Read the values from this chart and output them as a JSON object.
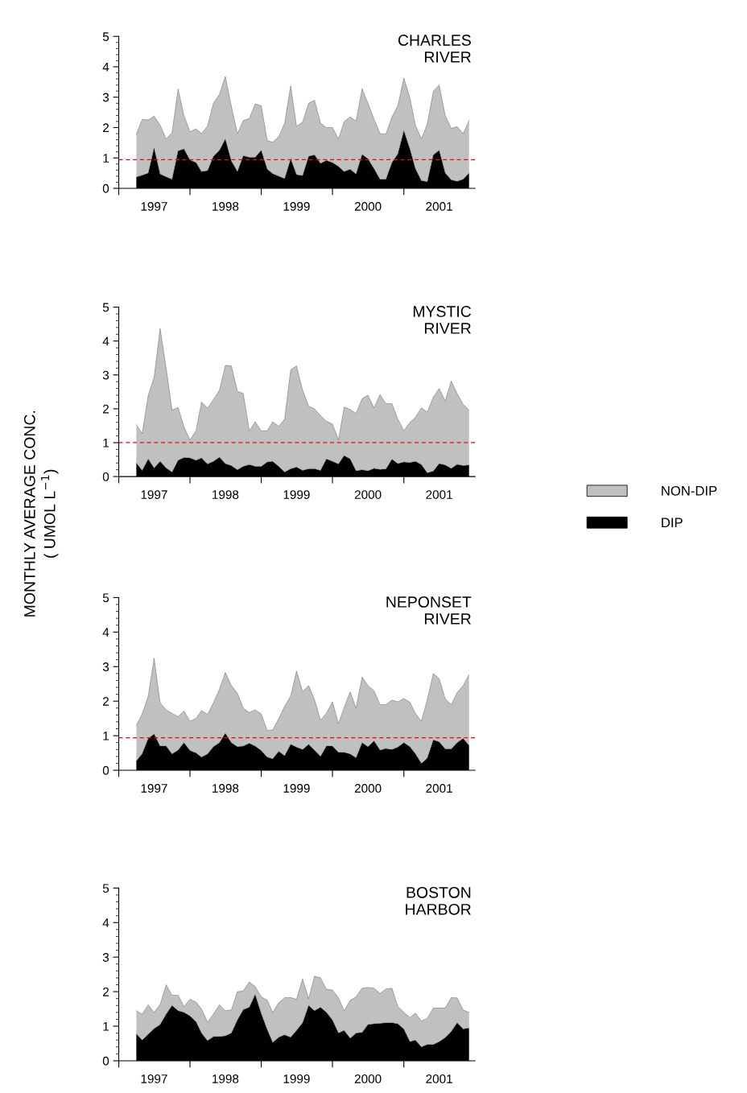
{
  "chart_data": [
    {
      "type": "area",
      "title": "CHARLES\nRIVER",
      "stacked": true,
      "xlim": [
        "1997-01",
        "2002-01"
      ],
      "ylim": [
        0,
        5
      ],
      "xticks": [
        {
          "value": "1997-01",
          "label": null
        },
        {
          "value": "1998-01",
          "label": null
        },
        {
          "value": "1999-01",
          "label": null
        },
        {
          "value": "2000-01",
          "label": null
        },
        {
          "value": "2001-01",
          "label": null
        },
        {
          "value": "1997-07",
          "label": "1997"
        },
        {
          "value": "1998-07",
          "label": "1998"
        },
        {
          "value": "1999-07",
          "label": "1999"
        },
        {
          "value": "2000-07",
          "label": "2000"
        },
        {
          "value": "2001-07",
          "label": "2001"
        }
      ],
      "yticks": [
        0,
        1,
        2,
        3,
        4,
        5,
        {
          "value": 0.2,
          "label": null
        },
        {
          "value": 0.4,
          "label": null
        },
        {
          "value": 0.6,
          "label": null
        },
        {
          "value": 0.8,
          "label": null
        },
        {
          "value": 1.2,
          "label": null
        },
        {
          "value": 1.4,
          "label": null
        },
        {
          "value": 1.6,
          "label": null
        },
        {
          "value": 1.8,
          "label": null
        },
        {
          "value": 2.2,
          "label": null
        },
        {
          "value": 2.4,
          "label": null
        },
        {
          "value": 2.6,
          "label": null
        },
        {
          "value": 2.8,
          "label": null
        },
        {
          "value": 3.2,
          "label": null
        },
        {
          "value": 3.4,
          "label": null
        },
        {
          "value": 3.6,
          "label": null
        },
        {
          "value": 3.8,
          "label": null
        },
        {
          "value": 4.2,
          "label": null
        },
        {
          "value": 4.4,
          "label": null
        },
        {
          "value": 4.6,
          "label": null
        },
        {
          "value": 4.8,
          "label": null
        }
      ],
      "ref_lines": [
        {
          "axis": "y",
          "value": 0.94,
          "color": "#ff0000",
          "line_style": "dashed"
        }
      ],
      "series": [
        {
          "color": "#000000",
          "values": [
            0.37,
            0.43,
            0.5,
            1.33,
            0.47,
            0.38,
            0.3,
            1.23,
            1.3,
            0.93,
            0.85,
            0.55,
            0.58,
            1.05,
            1.25,
            1.62,
            0.9,
            0.55,
            1.07,
            1.02,
            1.02,
            1.25,
            0.63,
            0.48,
            0.4,
            0.32,
            0.97,
            0.45,
            0.42,
            1.05,
            1.1,
            0.82,
            0.92,
            0.85,
            0.72,
            0.55,
            0.63,
            0.47,
            1.12,
            0.97,
            0.65,
            0.3,
            0.3,
            0.85,
            1.13,
            1.9,
            1.3,
            0.65,
            0.25,
            0.22,
            1.1,
            1.25,
            0.5,
            0.28,
            0.23,
            0.3,
            0.5
          ]
        },
        {
          "color": "#c0c0c0",
          "values": [
            1.41,
            1.84,
            1.75,
            1.05,
            1.61,
            1.25,
            1.53,
            2.04,
            1.1,
            0.93,
            1.11,
            1.25,
            1.47,
            1.75,
            1.85,
            2.06,
            1.8,
            1.25,
            1.16,
            1.28,
            1.76,
            1.47,
            0.94,
            1.04,
            1.3,
            1.83,
            2.4,
            1.59,
            1.76,
            1.75,
            1.8,
            1.33,
            1.08,
            1.15,
            0.9,
            1.65,
            1.72,
            1.75,
            2.16,
            1.83,
            1.63,
            1.5,
            1.49,
            1.5,
            1.59,
            1.73,
            1.68,
            1.43,
            1.38,
            1.9,
            2.1,
            2.15,
            1.9,
            1.69,
            1.8,
            1.5,
            1.73
          ]
        }
      ],
      "x": [
        "1997-04",
        "1997-05",
        "1997-06",
        "1997-07",
        "1997-08",
        "1997-09",
        "1997-10",
        "1997-11",
        "1997-12",
        "1998-01",
        "1998-02",
        "1998-03",
        "1998-04",
        "1998-05",
        "1998-06",
        "1998-07",
        "1998-08",
        "1998-09",
        "1998-10",
        "1998-11",
        "1998-12",
        "1999-01",
        "1999-02",
        "1999-03",
        "1999-04",
        "1999-05",
        "1999-06",
        "1999-07",
        "1999-08",
        "1999-09",
        "1999-10",
        "1999-11",
        "1999-12",
        "2000-01",
        "2000-02",
        "2000-03",
        "2000-04",
        "2000-05",
        "2000-06",
        "2000-07",
        "2000-08",
        "2000-09",
        "2000-10",
        "2000-11",
        "2000-12",
        "2001-01",
        "2001-02",
        "2001-03",
        "2001-04",
        "2001-05",
        "2001-06",
        "2001-07",
        "2001-08",
        "2001-09",
        "2001-10",
        "2001-11",
        "2001-12"
      ]
    },
    {
      "type": "area",
      "title": "MYSTIC\nRIVER",
      "ylabel": "MONTHLY AVERAGE CONC.\n( UMOL L$^{−1}$)",
      "stacked": true,
      "legend": "right",
      "xlim": [
        "1997-01",
        "2002-01"
      ],
      "ylim": [
        0,
        5
      ],
      "xticks": [
        {
          "value": "1997-01",
          "label": null
        },
        {
          "value": "1998-01",
          "label": null
        },
        {
          "value": "1999-01",
          "label": null
        },
        {
          "value": "2000-01",
          "label": null
        },
        {
          "value": "2001-01",
          "label": null
        },
        {
          "value": "1997-07",
          "label": "1997"
        },
        {
          "value": "1998-07",
          "label": "1998"
        },
        {
          "value": "1999-07",
          "label": "1999"
        },
        {
          "value": "2000-07",
          "label": "2000"
        },
        {
          "value": "2001-07",
          "label": "2001"
        }
      ],
      "yticks": [
        0,
        1,
        2,
        3,
        4,
        5,
        {
          "value": 0.2,
          "label": null
        },
        {
          "value": 0.4,
          "label": null
        },
        {
          "value": 0.6,
          "label": null
        },
        {
          "value": 0.8,
          "label": null
        },
        {
          "value": 1.2,
          "label": null
        },
        {
          "value": 1.4,
          "label": null
        },
        {
          "value": 1.6,
          "label": null
        },
        {
          "value": 1.8,
          "label": null
        },
        {
          "value": 2.2,
          "label": null
        },
        {
          "value": 2.4,
          "label": null
        },
        {
          "value": 2.6,
          "label": null
        },
        {
          "value": 2.8,
          "label": null
        },
        {
          "value": 3.2,
          "label": null
        },
        {
          "value": 3.4,
          "label": null
        },
        {
          "value": 3.6,
          "label": null
        },
        {
          "value": 3.8,
          "label": null
        },
        {
          "value": 4.2,
          "label": null
        },
        {
          "value": 4.4,
          "label": null
        },
        {
          "value": 4.6,
          "label": null
        },
        {
          "value": 4.8,
          "label": null
        }
      ],
      "ref_lines": [
        {
          "axis": "y",
          "value": 1.0,
          "color": "#ff0000",
          "line_style": "dashed"
        }
      ],
      "series": [
        {
          "name": "DIP",
          "color": "#000000",
          "values": [
            0.4,
            0.18,
            0.52,
            0.25,
            0.45,
            0.25,
            0.13,
            0.48,
            0.56,
            0.55,
            0.48,
            0.55,
            0.37,
            0.45,
            0.57,
            0.38,
            0.32,
            0.2,
            0.3,
            0.35,
            0.3,
            0.3,
            0.43,
            0.45,
            0.3,
            0.13,
            0.23,
            0.28,
            0.18,
            0.23,
            0.23,
            0.18,
            0.52,
            0.45,
            0.37,
            0.62,
            0.52,
            0.17,
            0.2,
            0.17,
            0.24,
            0.21,
            0.22,
            0.51,
            0.38,
            0.43,
            0.41,
            0.45,
            0.35,
            0.11,
            0.16,
            0.38,
            0.34,
            0.24,
            0.36,
            0.32,
            0.34
          ]
        },
        {
          "name": "NON-DIP",
          "color": "#c0c0c0",
          "values": [
            1.13,
            1.09,
            1.88,
            2.68,
            3.92,
            2.95,
            1.83,
            1.56,
            0.91,
            0.53,
            0.87,
            1.65,
            1.65,
            1.82,
            1.98,
            2.9,
            2.95,
            2.32,
            2.15,
            1.0,
            1.32,
            1.05,
            0.92,
            1.17,
            1.18,
            1.57,
            2.92,
            2.99,
            2.37,
            1.85,
            1.77,
            1.62,
            1.11,
            1.1,
            0.71,
            1.43,
            1.46,
            1.69,
            2.1,
            2.23,
            1.79,
            2.21,
            1.93,
            1.64,
            1.32,
            0.92,
            1.19,
            1.3,
            1.68,
            1.79,
            2.19,
            2.22,
            1.89,
            2.58,
            2.09,
            1.81,
            1.62
          ]
        }
      ],
      "x": [
        "1997-04",
        "1997-05",
        "1997-06",
        "1997-07",
        "1997-08",
        "1997-09",
        "1997-10",
        "1997-11",
        "1997-12",
        "1998-01",
        "1998-02",
        "1998-03",
        "1998-04",
        "1998-05",
        "1998-06",
        "1998-07",
        "1998-08",
        "1998-09",
        "1998-10",
        "1998-11",
        "1998-12",
        "1999-01",
        "1999-02",
        "1999-03",
        "1999-04",
        "1999-05",
        "1999-06",
        "1999-07",
        "1999-08",
        "1999-09",
        "1999-10",
        "1999-11",
        "1999-12",
        "2000-01",
        "2000-02",
        "2000-03",
        "2000-04",
        "2000-05",
        "2000-06",
        "2000-07",
        "2000-08",
        "2000-09",
        "2000-10",
        "2000-11",
        "2000-12",
        "2001-01",
        "2001-02",
        "2001-03",
        "2001-04",
        "2001-05",
        "2001-06",
        "2001-07",
        "2001-08",
        "2001-09",
        "2001-10",
        "2001-11",
        "2001-12"
      ]
    },
    {
      "type": "area",
      "title": "NEPONSET\nRIVER",
      "stacked": true,
      "xlim": [
        "1997-01",
        "2002-01"
      ],
      "ylim": [
        0,
        5
      ],
      "xticks": [
        {
          "value": "1997-01",
          "label": null
        },
        {
          "value": "1998-01",
          "label": null
        },
        {
          "value": "1999-01",
          "label": null
        },
        {
          "value": "2000-01",
          "label": null
        },
        {
          "value": "2001-01",
          "label": null
        },
        {
          "value": "1997-07",
          "label": "1997"
        },
        {
          "value": "1998-07",
          "label": "1998"
        },
        {
          "value": "1999-07",
          "label": "1999"
        },
        {
          "value": "2000-07",
          "label": "2000"
        },
        {
          "value": "2001-07",
          "label": "2001"
        }
      ],
      "yticks": [
        0,
        1,
        2,
        3,
        4,
        5,
        {
          "value": 0.2,
          "label": null
        },
        {
          "value": 0.4,
          "label": null
        },
        {
          "value": 0.6,
          "label": null
        },
        {
          "value": 0.8,
          "label": null
        },
        {
          "value": 1.2,
          "label": null
        },
        {
          "value": 1.4,
          "label": null
        },
        {
          "value": 1.6,
          "label": null
        },
        {
          "value": 1.8,
          "label": null
        },
        {
          "value": 2.2,
          "label": null
        },
        {
          "value": 2.4,
          "label": null
        },
        {
          "value": 2.6,
          "label": null
        },
        {
          "value": 2.8,
          "label": null
        },
        {
          "value": 3.2,
          "label": null
        },
        {
          "value": 3.4,
          "label": null
        },
        {
          "value": 3.6,
          "label": null
        },
        {
          "value": 3.8,
          "label": null
        },
        {
          "value": 4.2,
          "label": null
        },
        {
          "value": 4.4,
          "label": null
        },
        {
          "value": 4.6,
          "label": null
        },
        {
          "value": 4.8,
          "label": null
        }
      ],
      "ref_lines": [
        {
          "axis": "y",
          "value": 0.94,
          "color": "#ff0000",
          "line_style": "dashed"
        }
      ],
      "series": [
        {
          "color": "#000000",
          "values": [
            0.27,
            0.48,
            0.92,
            1.05,
            0.7,
            0.7,
            0.47,
            0.58,
            0.8,
            0.57,
            0.5,
            0.38,
            0.47,
            0.68,
            0.8,
            1.07,
            0.8,
            0.68,
            0.7,
            0.78,
            0.7,
            0.57,
            0.38,
            0.33,
            0.55,
            0.42,
            0.75,
            0.67,
            0.6,
            0.75,
            0.58,
            0.4,
            0.7,
            0.7,
            0.52,
            0.52,
            0.47,
            0.36,
            0.8,
            0.68,
            0.85,
            0.58,
            0.63,
            0.6,
            0.67,
            0.8,
            0.68,
            0.48,
            0.2,
            0.35,
            0.88,
            0.82,
            0.62,
            0.62,
            0.8,
            0.92,
            0.72
          ]
        },
        {
          "color": "#c0c0c0",
          "values": [
            1.03,
            1.15,
            1.23,
            2.2,
            1.25,
            1.05,
            1.18,
            0.97,
            0.92,
            0.85,
            1.0,
            1.35,
            1.15,
            1.27,
            1.55,
            1.76,
            1.65,
            1.55,
            1.1,
            0.89,
            1.05,
            1.06,
            0.77,
            0.84,
            0.95,
            1.43,
            1.4,
            2.2,
            1.68,
            1.7,
            1.47,
            1.05,
            0.95,
            1.28,
            0.83,
            1.3,
            1.8,
            1.44,
            1.9,
            1.77,
            1.45,
            1.32,
            1.27,
            1.43,
            1.31,
            1.28,
            1.29,
            1.17,
            1.22,
            1.7,
            1.92,
            1.83,
            1.45,
            1.28,
            1.45,
            1.53,
            2.05
          ]
        }
      ],
      "x": [
        "1997-04",
        "1997-05",
        "1997-06",
        "1997-07",
        "1997-08",
        "1997-09",
        "1997-10",
        "1997-11",
        "1997-12",
        "1998-01",
        "1998-02",
        "1998-03",
        "1998-04",
        "1998-05",
        "1998-06",
        "1998-07",
        "1998-08",
        "1998-09",
        "1998-10",
        "1998-11",
        "1998-12",
        "1999-01",
        "1999-02",
        "1999-03",
        "1999-04",
        "1999-05",
        "1999-06",
        "1999-07",
        "1999-08",
        "1999-09",
        "1999-10",
        "1999-11",
        "1999-12",
        "2000-01",
        "2000-02",
        "2000-03",
        "2000-04",
        "2000-05",
        "2000-06",
        "2000-07",
        "2000-08",
        "2000-09",
        "2000-10",
        "2000-11",
        "2000-12",
        "2001-01",
        "2001-02",
        "2001-03",
        "2001-04",
        "2001-05",
        "2001-06",
        "2001-07",
        "2001-08",
        "2001-09",
        "2001-10",
        "2001-11",
        "2001-12"
      ]
    },
    {
      "type": "area",
      "title": "BOSTON\nHARBOR",
      "stacked": true,
      "xlim": [
        "1997-01",
        "2002-01"
      ],
      "ylim": [
        0,
        5
      ],
      "xticks": [
        {
          "value": "1997-01",
          "label": null
        },
        {
          "value": "1998-01",
          "label": null
        },
        {
          "value": "1999-01",
          "label": null
        },
        {
          "value": "2000-01",
          "label": null
        },
        {
          "value": "2001-01",
          "label": null
        },
        {
          "value": "1997-07",
          "label": "1997"
        },
        {
          "value": "1998-07",
          "label": "1998"
        },
        {
          "value": "1999-07",
          "label": "1999"
        },
        {
          "value": "2000-07",
          "label": "2000"
        },
        {
          "value": "2001-07",
          "label": "2001"
        }
      ],
      "yticks": [
        0,
        1,
        2,
        3,
        4,
        5,
        {
          "value": 0.2,
          "label": null
        },
        {
          "value": 0.4,
          "label": null
        },
        {
          "value": 0.6,
          "label": null
        },
        {
          "value": 0.8,
          "label": null
        },
        {
          "value": 1.2,
          "label": null
        },
        {
          "value": 1.4,
          "label": null
        },
        {
          "value": 1.6,
          "label": null
        },
        {
          "value": 1.8,
          "label": null
        },
        {
          "value": 2.2,
          "label": null
        },
        {
          "value": 2.4,
          "label": null
        },
        {
          "value": 2.6,
          "label": null
        },
        {
          "value": 2.8,
          "label": null
        },
        {
          "value": 3.2,
          "label": null
        },
        {
          "value": 3.4,
          "label": null
        },
        {
          "value": 3.6,
          "label": null
        },
        {
          "value": 3.8,
          "label": null
        },
        {
          "value": 4.2,
          "label": null
        },
        {
          "value": 4.4,
          "label": null
        },
        {
          "value": 4.6,
          "label": null
        },
        {
          "value": 4.8,
          "label": null
        }
      ],
      "series": [
        {
          "color": "#000000",
          "values": [
            0.78,
            0.6,
            0.77,
            0.93,
            1.05,
            1.35,
            1.6,
            1.45,
            1.4,
            1.3,
            1.13,
            0.8,
            0.58,
            0.7,
            0.7,
            0.72,
            0.8,
            1.18,
            1.48,
            1.55,
            1.92,
            1.37,
            0.9,
            0.53,
            0.68,
            0.75,
            0.68,
            0.88,
            1.1,
            1.6,
            1.45,
            1.55,
            1.4,
            1.18,
            0.8,
            0.88,
            0.65,
            0.8,
            0.82,
            1.05,
            1.07,
            1.08,
            1.1,
            1.1,
            1.07,
            0.92,
            0.55,
            0.6,
            0.4,
            0.47,
            0.47,
            0.55,
            0.67,
            0.85,
            1.1,
            0.92,
            0.95
          ]
        },
        {
          "color": "#c0c0c0",
          "values": [
            0.67,
            0.75,
            0.85,
            0.47,
            0.58,
            0.85,
            0.3,
            0.45,
            0.17,
            0.48,
            0.57,
            0.7,
            0.54,
            0.65,
            0.92,
            0.73,
            0.67,
            0.82,
            0.54,
            0.73,
            0.23,
            0.48,
            0.85,
            0.87,
            1.0,
            1.08,
            1.15,
            0.9,
            1.27,
            0.2,
            1.0,
            0.85,
            0.67,
            0.87,
            1.02,
            0.57,
            1.1,
            1.05,
            1.28,
            1.07,
            1.03,
            0.87,
            0.98,
            1.0,
            0.5,
            0.48,
            0.7,
            0.78,
            0.75,
            0.76,
            1.06,
            0.98,
            0.86,
            0.98,
            0.72,
            0.55,
            0.45
          ]
        }
      ],
      "x": [
        "1997-04",
        "1997-05",
        "1997-06",
        "1997-07",
        "1997-08",
        "1997-09",
        "1997-10",
        "1997-11",
        "1997-12",
        "1998-01",
        "1998-02",
        "1998-03",
        "1998-04",
        "1998-05",
        "1998-06",
        "1998-07",
        "1998-08",
        "1998-09",
        "1998-10",
        "1998-11",
        "1998-12",
        "1999-01",
        "1999-02",
        "1999-03",
        "1999-04",
        "1999-05",
        "1999-06",
        "1999-07",
        "1999-08",
        "1999-09",
        "1999-10",
        "1999-11",
        "1999-12",
        "2000-01",
        "2000-02",
        "2000-03",
        "2000-04",
        "2000-05",
        "2000-06",
        "2000-07",
        "2000-08",
        "2000-09",
        "2000-10",
        "2000-11",
        "2000-12",
        "2001-01",
        "2001-02",
        "2001-03",
        "2001-04",
        "2001-05",
        "2001-06",
        "2001-07",
        "2001-08",
        "2001-09",
        "2001-10",
        "2001-11",
        "2001-12"
      ]
    }
  ]
}
